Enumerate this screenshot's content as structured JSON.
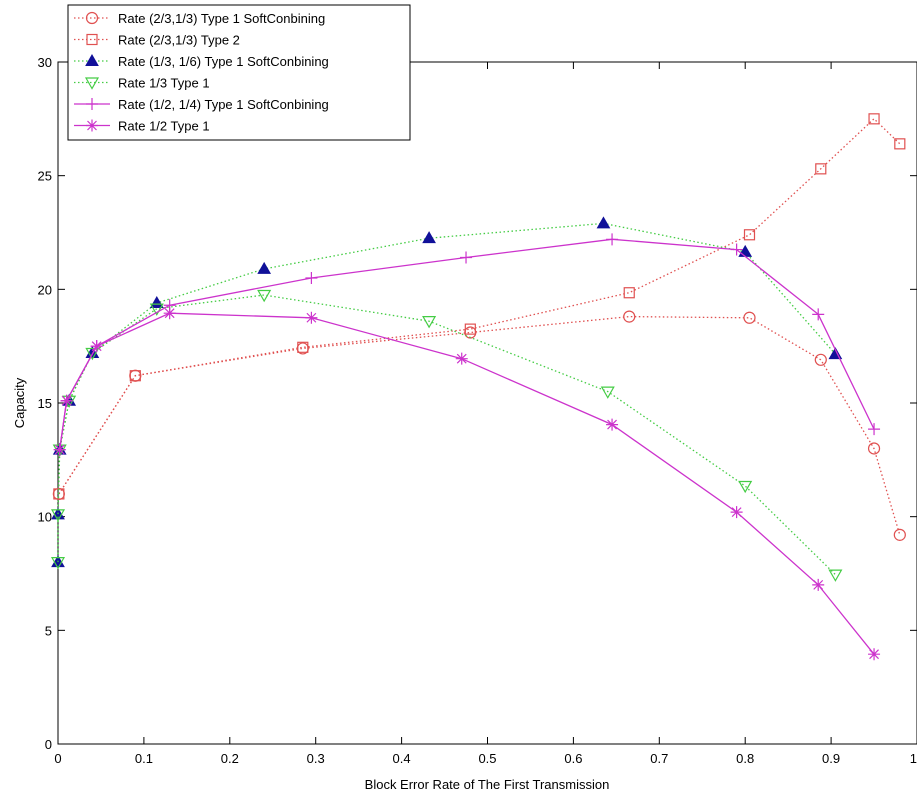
{
  "chart_data": {
    "type": "line",
    "title": "",
    "xlabel": "Block Error Rate of The First Transmission",
    "ylabel": "Capacity",
    "xlim": [
      0,
      1
    ],
    "ylim": [
      0,
      30
    ],
    "xticks": [
      0,
      0.1,
      0.2,
      0.3,
      0.4,
      0.5,
      0.6,
      0.7,
      0.8,
      0.9,
      1
    ],
    "xtick_labels": [
      "0",
      "0.1",
      "0.2",
      "0.3",
      "0.4",
      "0.5",
      "0.6",
      "0.7",
      "0.8",
      "0.9",
      "1"
    ],
    "yticks": [
      0,
      5,
      10,
      15,
      20,
      25,
      30
    ],
    "ytick_labels": [
      "0",
      "5",
      "10",
      "15",
      "20",
      "25",
      "30"
    ],
    "grid": false,
    "legend_position": "top-left",
    "series": [
      {
        "name": "Rate (2/3,1/3) Type 1 SoftConbining",
        "color": "#e05050",
        "marker": "circle",
        "line": "dotted",
        "x": [
          0.001,
          0.09,
          0.285,
          0.48,
          0.665,
          0.805,
          0.888,
          0.95,
          0.98
        ],
        "y": [
          11.0,
          16.2,
          17.4,
          18.1,
          18.8,
          18.75,
          16.9,
          13.0,
          9.2
        ]
      },
      {
        "name": "Rate (2/3,1/3) Type 2",
        "color": "#e05050",
        "marker": "square",
        "line": "dotted",
        "x": [
          0.001,
          0.09,
          0.285,
          0.48,
          0.665,
          0.805,
          0.888,
          0.95,
          0.98
        ],
        "y": [
          11.0,
          16.2,
          17.45,
          18.25,
          19.85,
          22.4,
          25.3,
          27.5,
          26.4
        ]
      },
      {
        "name": "Rate (1/3, 1/6) Type 1 SoftConbining",
        "color": "#111199",
        "marker": "triangle-up",
        "line": "dotted-green",
        "x": [
          0.0,
          0.0,
          0.002,
          0.013,
          0.04,
          0.115,
          0.24,
          0.432,
          0.635,
          0.8,
          0.905
        ],
        "y": [
          8.0,
          10.1,
          12.95,
          15.1,
          17.2,
          19.4,
          20.9,
          22.25,
          22.9,
          21.65,
          17.15
        ]
      },
      {
        "name": "Rate 1/3 Type 1",
        "color": "#44cc44",
        "marker": "triangle-down",
        "line": "dotted",
        "x": [
          0.0,
          0.0,
          0.002,
          0.013,
          0.04,
          0.115,
          0.24,
          0.432,
          0.64,
          0.8,
          0.905
        ],
        "y": [
          8.0,
          10.1,
          12.95,
          15.1,
          17.2,
          19.15,
          19.75,
          18.6,
          15.5,
          11.35,
          7.45
        ]
      },
      {
        "name": "Rate (1/2, 1/4) Type 1 SoftConbining",
        "color": "#cc33cc",
        "marker": "plus",
        "line": "solid",
        "x": [
          0.002,
          0.01,
          0.045,
          0.13,
          0.295,
          0.475,
          0.645,
          0.79,
          0.885,
          0.95
        ],
        "y": [
          12.95,
          15.1,
          17.5,
          19.3,
          20.5,
          21.4,
          22.2,
          21.75,
          18.9,
          13.85
        ]
      },
      {
        "name": "Rate 1/2 Type 1",
        "color": "#cc33cc",
        "marker": "star",
        "line": "solid",
        "x": [
          0.002,
          0.01,
          0.045,
          0.13,
          0.295,
          0.47,
          0.645,
          0.79,
          0.885,
          0.95
        ],
        "y": [
          12.95,
          15.1,
          17.5,
          18.95,
          18.75,
          16.95,
          14.05,
          10.2,
          7.0,
          3.95
        ]
      }
    ]
  }
}
